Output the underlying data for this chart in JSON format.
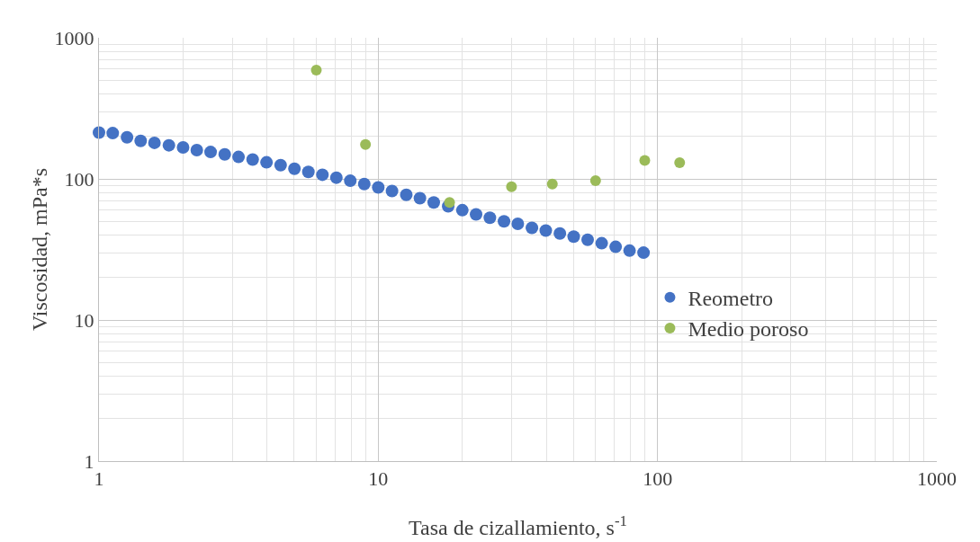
{
  "chart_data": {
    "type": "scatter",
    "xlabel": "Tasa de cizallamiento, s$^{-1}$",
    "ylabel": "Viscosidad, mPa*s",
    "log": "xy",
    "grid": true,
    "legend": "right",
    "marker": "circle",
    "xlim": [
      1,
      1000
    ],
    "ylim": [
      1,
      1000
    ],
    "xticks": [
      1,
      10,
      100,
      1000
    ],
    "yticks": [
      1,
      10,
      100,
      1000
    ],
    "series": [
      {
        "name": "Reometro",
        "color": "#4472c4",
        "x": [
          1,
          1.12,
          1.26,
          1.41,
          1.58,
          1.78,
          2,
          2.24,
          2.51,
          2.82,
          3.16,
          3.55,
          3.98,
          4.47,
          5.01,
          5.62,
          6.31,
          7.08,
          7.94,
          8.91,
          10,
          11.2,
          12.6,
          14.1,
          15.8,
          17.8,
          20,
          22.4,
          25.1,
          28.2,
          31.6,
          35.5,
          39.8,
          44.7,
          50.1,
          56.2,
          63.1,
          70.8,
          79.4,
          89.1
        ],
        "values": [
          213,
          211,
          197,
          186,
          180,
          173,
          167,
          160,
          155,
          149,
          143,
          137,
          131,
          125,
          118,
          112,
          107,
          102,
          97,
          92,
          87,
          82,
          77,
          73,
          68,
          64,
          60,
          56,
          53,
          50,
          48,
          45,
          43,
          41,
          39,
          37,
          35,
          33,
          31,
          30
        ]
      },
      {
        "name": "Medio poroso",
        "color": "#9bbb59",
        "x": [
          6,
          9,
          18,
          30,
          42,
          60,
          90,
          120
        ],
        "values": [
          590,
          175,
          68,
          88,
          92,
          97,
          135,
          130
        ]
      }
    ]
  }
}
